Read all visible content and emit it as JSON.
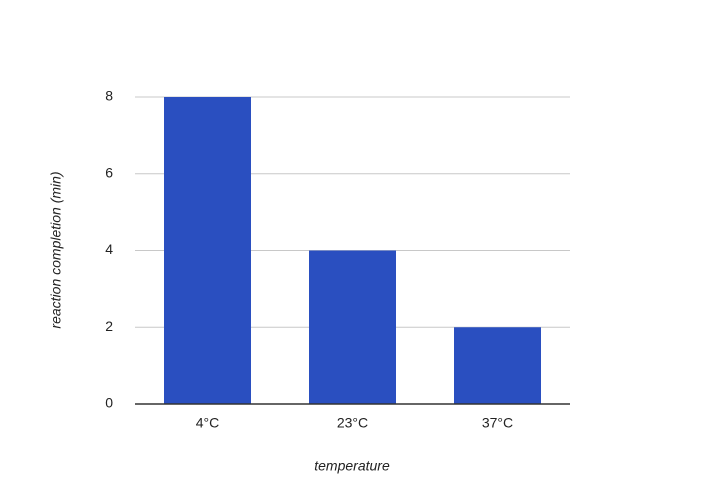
{
  "chart_data": {
    "type": "bar",
    "categories": [
      "4°C",
      "23°C",
      "37°C"
    ],
    "values": [
      8,
      4,
      2
    ],
    "color": "#2a4fc0",
    "xlabel": "temperature",
    "ylabel": "reaction completion (min)",
    "ylim": [
      0,
      8
    ],
    "yticks": [
      0,
      2,
      4,
      6,
      8
    ],
    "grid": true
  }
}
